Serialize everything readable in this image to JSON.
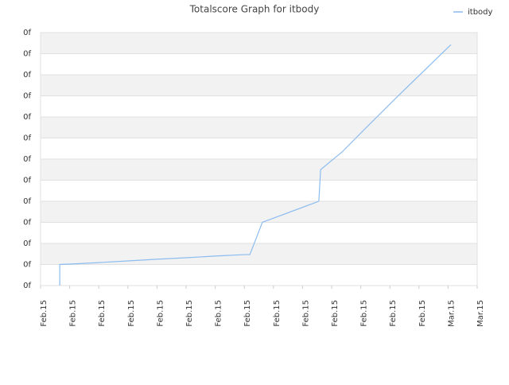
{
  "chart_data": {
    "type": "line",
    "title": "Totalscore Graph for itbody",
    "series": [
      {
        "name": "itbody",
        "color": "#8cbcf0",
        "x": [
          0.66,
          0.66,
          1.01,
          2.0,
          3.0,
          4.0,
          5.0,
          6.0,
          7.02,
          7.19,
          7.62,
          9.56,
          9.62,
          10.36,
          11.17,
          12.27,
          14.1
        ],
        "values": [
          0,
          1.0,
          1.02,
          1.09,
          1.17,
          1.25,
          1.32,
          1.4,
          1.47,
          1.47,
          3.0,
          4.0,
          5.5,
          6.34,
          7.47,
          8.98,
          11.43
        ]
      }
    ],
    "xlim": [
      0,
      15
    ],
    "ylim": [
      0,
      12
    ],
    "xticks": [
      {
        "value": 0,
        "label": "Feb.15"
      },
      {
        "value": 1,
        "label": "Feb.15"
      },
      {
        "value": 2,
        "label": "Feb.15"
      },
      {
        "value": 3,
        "label": "Feb.15"
      },
      {
        "value": 4,
        "label": "Feb.15"
      },
      {
        "value": 5,
        "label": "Feb.15"
      },
      {
        "value": 6,
        "label": "Feb.15"
      },
      {
        "value": 7,
        "label": "Feb.15"
      },
      {
        "value": 8,
        "label": "Feb.15"
      },
      {
        "value": 9,
        "label": "Feb.15"
      },
      {
        "value": 10,
        "label": "Feb.15"
      },
      {
        "value": 11,
        "label": "Feb.15"
      },
      {
        "value": 12,
        "label": "Feb.15"
      },
      {
        "value": 13,
        "label": "Feb.15"
      },
      {
        "value": 14,
        "label": "Mar.15"
      },
      {
        "value": 15,
        "label": "Mar.15"
      }
    ],
    "yticks": [
      {
        "value": 0,
        "label": "0f"
      },
      {
        "value": 1,
        "label": "0f"
      },
      {
        "value": 2,
        "label": "0f"
      },
      {
        "value": 3,
        "label": "0f"
      },
      {
        "value": 4,
        "label": "0f"
      },
      {
        "value": 5,
        "label": "0f"
      },
      {
        "value": 6,
        "label": "0f"
      },
      {
        "value": 7,
        "label": "0f"
      },
      {
        "value": 8,
        "label": "0f"
      },
      {
        "value": 9,
        "label": "0f"
      },
      {
        "value": 10,
        "label": "0f"
      },
      {
        "value": 11,
        "label": "0f"
      },
      {
        "value": 12,
        "label": "0f"
      }
    ],
    "grid": true,
    "legend": "top-right"
  }
}
